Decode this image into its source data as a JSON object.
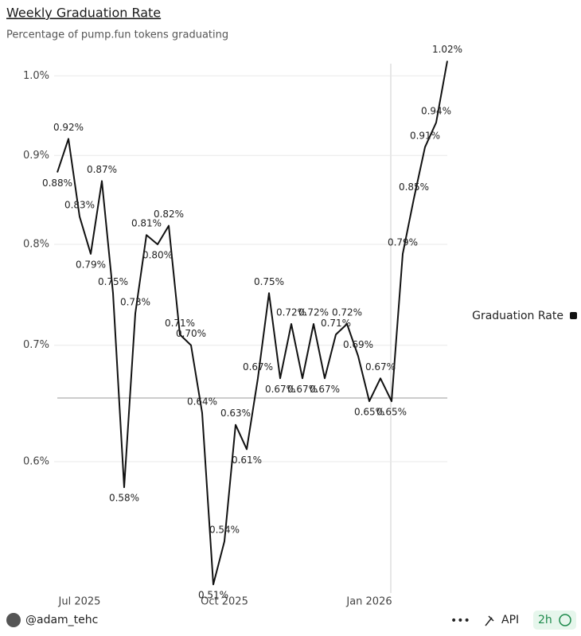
{
  "chart_data": {
    "type": "line",
    "title": "Weekly Graduation Rate",
    "subtitle": "Percentage of pump.fun tokens graduating",
    "categories": [
      null,
      null,
      "Jul 2025",
      null,
      null,
      null,
      null,
      null,
      null,
      null,
      null,
      null,
      null,
      null,
      null,
      "Oct 2025",
      null,
      null,
      null,
      null,
      null,
      null,
      null,
      null,
      null,
      null,
      null,
      null,
      "Jan 2026",
      null,
      null,
      null,
      null,
      null,
      null,
      null
    ],
    "series": [
      {
        "name": "Graduation Rate",
        "color": "#111111",
        "values": [
          0.88,
          0.92,
          0.83,
          0.79,
          0.87,
          0.75,
          0.58,
          0.73,
          0.81,
          0.8,
          0.82,
          0.71,
          0.7,
          0.64,
          0.51,
          0.54,
          0.63,
          0.61,
          0.67,
          0.75,
          0.67,
          0.72,
          0.67,
          0.72,
          0.67,
          0.71,
          0.72,
          0.69,
          0.65,
          0.67,
          0.65,
          0.79,
          0.85,
          0.91,
          0.94,
          1.02
        ],
        "value_labels": [
          "0.88%",
          "0.92%",
          "0.83%",
          "0.79%",
          "0.87%",
          "0.75%",
          "0.58%",
          "0.73%",
          "0.81%",
          "0.80%",
          "0.82%",
          "0.71%",
          "0.70%",
          "0.64%",
          "0.51%",
          "0.54%",
          "0.63%",
          "0.61%",
          "0.67%",
          "0.75%",
          "0.67%",
          "0.72%",
          "0.67%",
          "0.72%",
          "0.67%",
          "0.71%",
          "0.72%",
          "0.69%",
          "0.65%",
          "0.67%",
          "0.65%",
          "0.79%",
          "0.85%",
          "0.91%",
          "0.94%",
          "1.02%"
        ]
      }
    ],
    "ylim": [
      0.5,
      1.06
    ],
    "log_scale": true,
    "grid": true,
    "legend": "right",
    "yticks": [
      {
        "value": 0.6,
        "label": "0.6%"
      },
      {
        "value": 0.7,
        "label": "0.7%"
      },
      {
        "value": 0.8,
        "label": "0.8%"
      },
      {
        "value": 0.9,
        "label": "0.9%"
      },
      {
        "value": 1.0,
        "label": "1.0%"
      }
    ]
  },
  "footer": {
    "author": "@adam_tehc",
    "more": "•••",
    "api": "API",
    "refresh": "2h"
  }
}
